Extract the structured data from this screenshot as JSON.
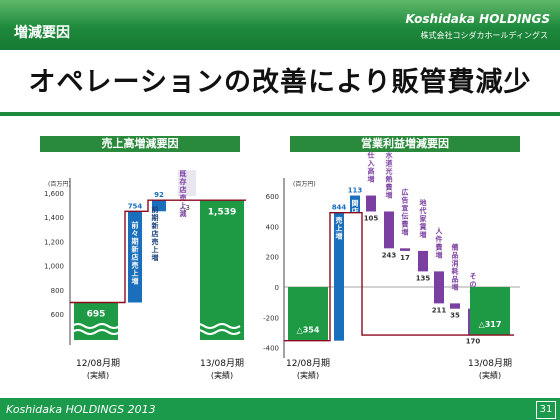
{
  "header": {
    "section": "増減要因",
    "logo": "Koshidaka HOLDINGS",
    "logo_sub": "株式会社コシダカホールディングス"
  },
  "title": "オペレーションの改善により販管費減少",
  "footer": {
    "text": "Koshidaka HOLDINGS 2013",
    "page": "31"
  },
  "colors": {
    "green": "#1e9a44",
    "blue": "#1a6fbd",
    "purple": "#7a3fa0",
    "line": "#8b0a1e"
  },
  "chart_data": [
    {
      "type": "bar",
      "title": "売上高増減要因",
      "unit": "(百万円)",
      "y_ticks": [
        "1,600",
        "1,400",
        "1,200",
        "1,000",
        "800",
        "600"
      ],
      "start": {
        "label": "12/08月期",
        "sub": "(実績)",
        "value": 695
      },
      "steps": [
        {
          "label": "前々期新店売上増",
          "value": 754
        },
        {
          "label": "前期新店売上増",
          "value": 92
        },
        {
          "label": "既存店売上減",
          "value": "△3"
        }
      ],
      "end": {
        "label": "13/08月期",
        "sub": "(実績)",
        "value": "1,539"
      }
    },
    {
      "type": "bar",
      "title": "営業利益増減要因",
      "unit": "(百万円)",
      "y_ticks": [
        "600",
        "400",
        "200",
        "0",
        "-200",
        "-400"
      ],
      "start": {
        "label": "12/08月期",
        "sub": "(実績)",
        "value": "△354"
      },
      "steps": [
        {
          "label": "売上増",
          "value": 844,
          "color": "blue"
        },
        {
          "label": "関店経費用増",
          "value": 113,
          "color": "blue"
        },
        {
          "label": "仕入高増",
          "value": 105
        },
        {
          "label": "水道光熱費増",
          "value": 243
        },
        {
          "label": "広告宣伝費増",
          "value": 17
        },
        {
          "label": "地代家賃増",
          "value": 135
        },
        {
          "label": "人件費増",
          "value": 211
        },
        {
          "label": "備品消耗品増",
          "value": 35
        },
        {
          "label": "その他",
          "value": 170
        }
      ],
      "end": {
        "label": "13/08月期",
        "sub": "(実績)",
        "value": "△317"
      }
    }
  ]
}
